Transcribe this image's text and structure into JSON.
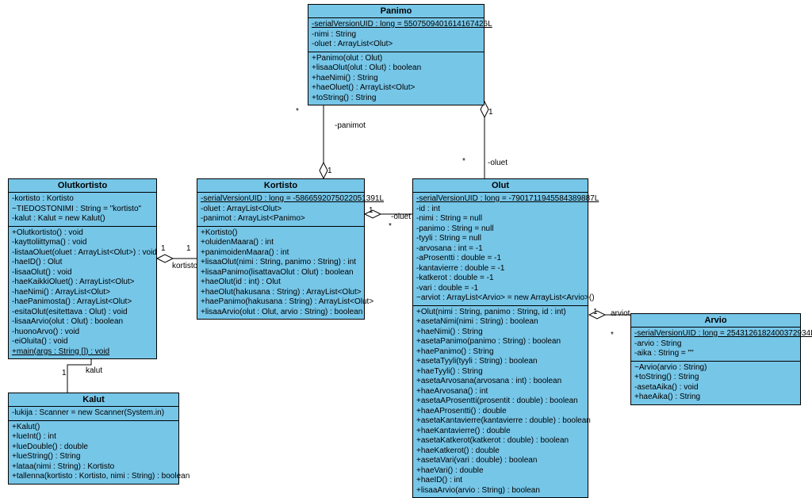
{
  "style": {
    "class_fill": "#76c6e8",
    "border_color": "#000000",
    "font_family": "Arial",
    "base_fontsize": 10,
    "title_fontsize": 11
  },
  "classes": {
    "panimo": {
      "title": "Panimo",
      "attrs": [
        {
          "text": "-serialVersionUID : long = 5507509401614167426L",
          "underline": true
        },
        {
          "text": "-nimi : String"
        },
        {
          "text": "-oluet : ArrayList<Olut>"
        }
      ],
      "ops": [
        {
          "text": "+Panimo(olut : Olut)"
        },
        {
          "text": "+lisaaOlut(olut : Olut) : boolean"
        },
        {
          "text": "+haeNimi() : String"
        },
        {
          "text": "+haeOluet() : ArrayList<Olut>"
        },
        {
          "text": "+toString() : String"
        }
      ]
    },
    "kortisto": {
      "title": "Kortisto",
      "attrs": [
        {
          "text": "-serialVersionUID : long = -5866592075022051391L",
          "underline": true
        },
        {
          "text": "-oluet : ArrayList<Olut>"
        },
        {
          "text": "-panimot : ArrayList<Panimo>"
        }
      ],
      "ops": [
        {
          "text": "+Kortisto()"
        },
        {
          "text": "+oluidenMaara() : int"
        },
        {
          "text": "+panimoidenMaara() : int"
        },
        {
          "text": "+lisaaOlut(nimi : String, panimo : String) : int"
        },
        {
          "text": "+lisaaPanimo(lisattavaOlut : Olut) : boolean"
        },
        {
          "text": "+haeOlut(id : int) : Olut"
        },
        {
          "text": "+haeOlut(hakusana : String) : ArrayList<Olut>"
        },
        {
          "text": "+haePanimo(hakusana : String) : ArrayList<Olut>"
        },
        {
          "text": "+lisaaArvio(olut : Olut, arvio : String) : boolean"
        }
      ]
    },
    "olutkortisto": {
      "title": "Olutkortisto",
      "attrs": [
        {
          "text": "-kortisto : Kortisto"
        },
        {
          "text": "~TIEDOSTONIMI : String = \"kortisto\""
        },
        {
          "text": "-kalut : Kalut = new Kalut()"
        }
      ],
      "ops": [
        {
          "text": "+Olutkortisto() : void"
        },
        {
          "text": "-kayttoliittyma() : void"
        },
        {
          "text": "-listaaOluet(oluet : ArrayList<Olut>) : void"
        },
        {
          "text": "-haeID() : Olut"
        },
        {
          "text": "-lisaaOlut() : void"
        },
        {
          "text": "-haeKaikkiOluet() : ArrayList<Olut>"
        },
        {
          "text": "-haeNimi() : ArrayList<Olut>"
        },
        {
          "text": "-haePanimosta() : ArrayList<Olut>"
        },
        {
          "text": "-esitaOlut(esitettava : Olut) : void"
        },
        {
          "text": "-lisaaArvio(olut : Olut) : boolean"
        },
        {
          "text": "-huonoArvo() : void"
        },
        {
          "text": "-eiOluita() : void"
        },
        {
          "text": "+main(args : String []) : void",
          "underline": true
        }
      ]
    },
    "kalut": {
      "title": "Kalut",
      "attrs": [
        {
          "text": "-lukija : Scanner = new Scanner(System.in)"
        }
      ],
      "ops": [
        {
          "text": "+Kalut()"
        },
        {
          "text": "+lueInt() : int"
        },
        {
          "text": "+lueDouble() : double"
        },
        {
          "text": "+lueString() : String"
        },
        {
          "text": "+lataa(nimi : String) : Kortisto"
        },
        {
          "text": "+tallenna(kortisto : Kortisto, nimi : String) : boolean"
        }
      ]
    },
    "olut": {
      "title": "Olut",
      "attrs": [
        {
          "text": "-serialVersionUID : long = -7901711945584389887L",
          "underline": true
        },
        {
          "text": "-id : int"
        },
        {
          "text": "-nimi : String = null"
        },
        {
          "text": "-panimo : String = null"
        },
        {
          "text": "-tyyli : String = null"
        },
        {
          "text": "-arvosana : int = -1"
        },
        {
          "text": "-aProsentti : double = -1"
        },
        {
          "text": "-kantavierre : double = -1"
        },
        {
          "text": "-katkerot : double = -1"
        },
        {
          "text": "-vari : double = -1"
        },
        {
          "text": "~arviot : ArrayList<Arvio> = new ArrayList<Arvio>()"
        }
      ],
      "ops": [
        {
          "text": "+Olut(nimi : String, panimo : String, id : int)"
        },
        {
          "text": "+asetaNimi(nimi : String) : boolean"
        },
        {
          "text": "+haeNimi() : String"
        },
        {
          "text": "+asetaPanimo(panimo : String) : boolean"
        },
        {
          "text": "+haePanimo() : String"
        },
        {
          "text": "+asetaTyyli(tyyli : String) : boolean"
        },
        {
          "text": "+haeTyyli() : String"
        },
        {
          "text": "+asetaArvosana(arvosana : int) : boolean"
        },
        {
          "text": "+haeArvosana() : int"
        },
        {
          "text": "+asetaAProsentti(prosentit : double) : boolean"
        },
        {
          "text": "+haeAProsentti() : double"
        },
        {
          "text": "+asetaKantavierre(kantavierre : double) : boolean"
        },
        {
          "text": "+haeKantavierre() : double"
        },
        {
          "text": "+asetaKatkerot(katkerot : double) : boolean"
        },
        {
          "text": "+haeKatkerot() : double"
        },
        {
          "text": "+asetaVari(vari : double) : boolean"
        },
        {
          "text": "+haeVari() : double"
        },
        {
          "text": "+haeID() : int"
        },
        {
          "text": "+lisaaArvio(arvio : String) : boolean"
        }
      ]
    },
    "arvio": {
      "title": "Arvio",
      "attrs": [
        {
          "text": "-serialVersionUID : long = 2543126182400372934L",
          "underline": true
        },
        {
          "text": "-arvio : String"
        },
        {
          "text": "-aika : String = \"\""
        }
      ],
      "ops": [
        {
          "text": "~Arvio(arvio : String)"
        },
        {
          "text": "+toString() : String"
        },
        {
          "text": "-asetaAika() : void"
        },
        {
          "text": "+haeAika() : String"
        }
      ]
    }
  },
  "labels": {
    "panimot": "-panimot",
    "oluet": "-oluet",
    "kortisto": "kortisto",
    "kalut": "kalut",
    "arviot": "arviot",
    "one": "1",
    "star": "*"
  }
}
